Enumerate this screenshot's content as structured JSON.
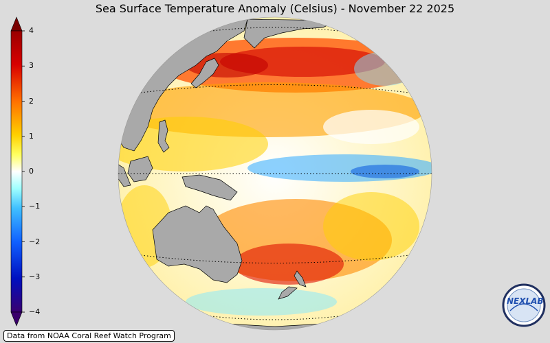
{
  "title": "Sea Surface Temperature Anomaly (Celsius) - November 22 2025",
  "colorbar": {
    "ticks": [
      "4",
      "3",
      "2",
      "1",
      "0",
      "−1",
      "−2",
      "−3",
      "−4"
    ],
    "min": -4,
    "max": 4,
    "colors": {
      "pos4": "#7a0000",
      "pos3": "#d80000",
      "pos2": "#ff7a00",
      "pos1": "#ffd800",
      "zero": "#ffffff",
      "neg1": "#80ffff",
      "neg2": "#1f8fff",
      "neg3": "#0020c0",
      "neg4": "#3a006a"
    }
  },
  "map": {
    "land_color": "#a9a9a9",
    "ocean_base": "#fff4a0",
    "gridline_style": "dotted"
  },
  "credit": "Data from NOAA Coral Reef Watch Program",
  "logo": {
    "text": "NEXLAB",
    "icon": "nexlab-logo-icon"
  }
}
